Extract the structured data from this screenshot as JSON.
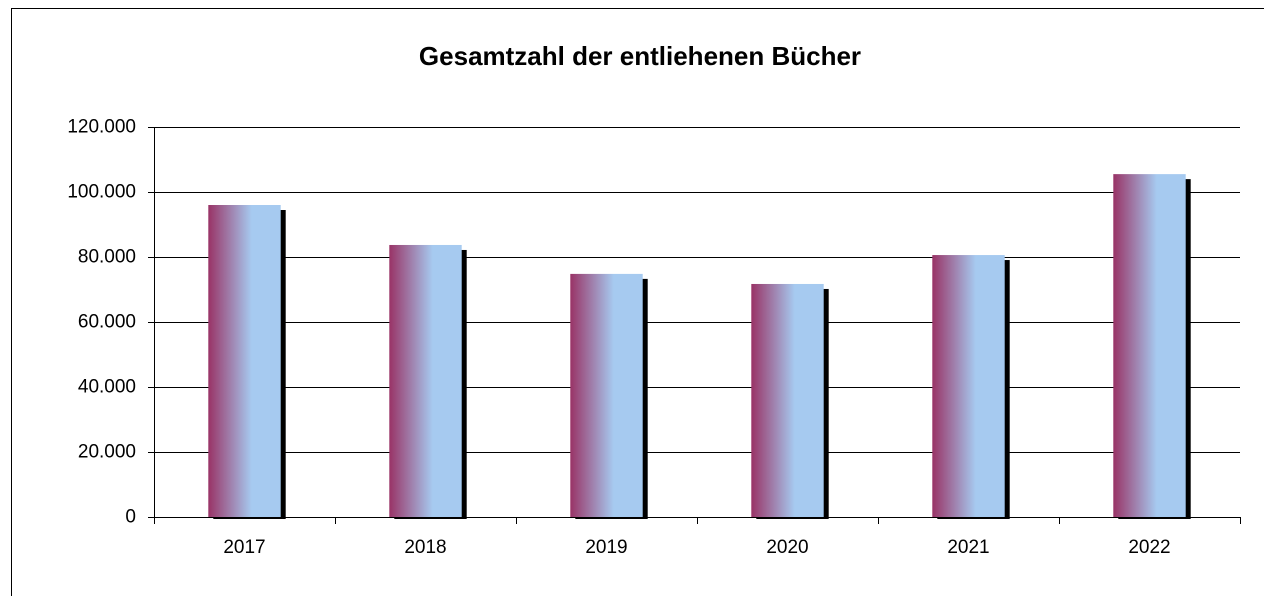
{
  "chart_data": {
    "type": "bar",
    "title": "Gesamtzahl der entliehenen Bücher",
    "categories": [
      "2017",
      "2018",
      "2019",
      "2020",
      "2021",
      "2022"
    ],
    "values": [
      96000,
      83700,
      74800,
      71700,
      80600,
      105500
    ],
    "color": "#993366",
    "ylim": [
      0,
      120000
    ],
    "yticks": [
      0,
      {
        "value": 20000,
        "label": "20.000"
      },
      {
        "value": 40000,
        "label": "40.000"
      },
      {
        "value": 60000,
        "label": "60.000"
      },
      {
        "value": 80000,
        "label": "80.000"
      },
      {
        "value": 100000,
        "label": "100.000"
      },
      {
        "value": 120000,
        "label": "120.000"
      }
    ],
    "grid": true
  }
}
